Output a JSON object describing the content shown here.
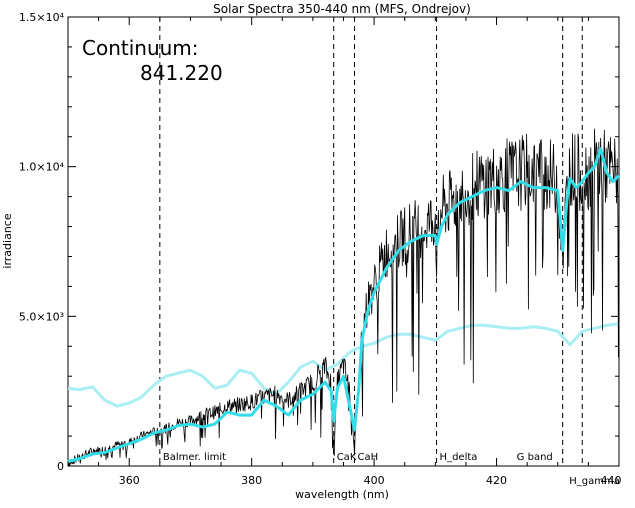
{
  "chart_data": {
    "type": "line",
    "title": "Solar Spectra 350-440 nm (MFS, Ondrejov)",
    "xlabel": "wavelength (nm)",
    "ylabel": "irradiance",
    "xlim": [
      350,
      440
    ],
    "ylim": [
      0,
      15000
    ],
    "x_ticks": [
      360,
      380,
      400,
      420,
      440
    ],
    "y_ticks": [
      {
        "value": 0,
        "label": "0"
      },
      {
        "value": 5000,
        "label": "5.0×10³"
      },
      {
        "value": 10000,
        "label": "1.0×10⁴"
      },
      {
        "value": 15000,
        "label": "1.5×10⁴"
      }
    ],
    "annotation": {
      "label": "Continuum:",
      "value": "841.220"
    },
    "spectral_lines": [
      {
        "x": 365,
        "label": "Balmer. limit"
      },
      {
        "x": 393.4,
        "label": "CaK"
      },
      {
        "x": 396.8,
        "label": "CaH"
      },
      {
        "x": 410.2,
        "label": "H_delta"
      },
      {
        "x": 430.8,
        "label": "G band"
      },
      {
        "x": 434.0,
        "label": "H_gamma"
      }
    ],
    "series": [
      {
        "color": "#000000",
        "style": "raw",
        "x": [
          350,
          352,
          354,
          356,
          358,
          360,
          362,
          364,
          366,
          368,
          370,
          372,
          374,
          376,
          378,
          380,
          382,
          384,
          386,
          388,
          390,
          391,
          392,
          393,
          393.4,
          394,
          395,
          396,
          396.8,
          397.5,
          398,
          399,
          400,
          402,
          404,
          406,
          408,
          410,
          410.2,
          411,
          412,
          414,
          416,
          418,
          420,
          422,
          424,
          426,
          428,
          430,
          430.8,
          431.5,
          432,
          433,
          434,
          435,
          436,
          437,
          438,
          439,
          440
        ],
        "y": [
          100,
          300,
          500,
          550,
          700,
          800,
          1000,
          1150,
          1250,
          1450,
          1500,
          1700,
          1800,
          2000,
          2050,
          2150,
          2300,
          2400,
          2200,
          2500,
          2800,
          3100,
          3300,
          2800,
          500,
          2800,
          3400,
          2500,
          600,
          3000,
          4500,
          5500,
          6000,
          7200,
          7500,
          7900,
          8000,
          8300,
          7000,
          8600,
          8700,
          9000,
          9300,
          9500,
          9600,
          9700,
          9800,
          9900,
          9800,
          9500,
          7000,
          9200,
          10000,
          9900,
          9700,
          9800,
          10000,
          10100,
          9900,
          9800,
          9800
        ]
      },
      {
        "color": "#33dde8",
        "style": "smoothed",
        "x": [
          350,
          352,
          354,
          356,
          358,
          360,
          362,
          364,
          366,
          368,
          370,
          372,
          374,
          376,
          378,
          380,
          382,
          384,
          386,
          388,
          390,
          391,
          392,
          393,
          393.4,
          394,
          395,
          396,
          396.8,
          397.5,
          398,
          399,
          400,
          402,
          404,
          406,
          408,
          410,
          410.2,
          411,
          412,
          414,
          416,
          418,
          420,
          422,
          424,
          426,
          428,
          430,
          430.8,
          431.5,
          432,
          433,
          434,
          435,
          436,
          437,
          438,
          439,
          440
        ],
        "y": [
          150,
          250,
          400,
          450,
          600,
          750,
          900,
          1100,
          1200,
          1350,
          1400,
          1300,
          1400,
          1800,
          1700,
          1700,
          2200,
          2000,
          1700,
          2200,
          2400,
          2600,
          2800,
          2500,
          1500,
          2600,
          3000,
          2000,
          1200,
          2600,
          4200,
          5200,
          5800,
          6600,
          7200,
          7500,
          7700,
          7700,
          7400,
          8000,
          8400,
          8800,
          9000,
          9200,
          9300,
          9200,
          9500,
          9300,
          9300,
          9200,
          7200,
          8900,
          9600,
          9300,
          9500,
          9800,
          10000,
          10600,
          9800,
          9500,
          9700
        ]
      },
      {
        "color": "#a8eef2",
        "style": "continuum",
        "x": [
          350,
          352,
          354,
          356,
          358,
          360,
          362,
          364,
          366,
          368,
          370,
          372,
          374,
          376,
          378,
          380,
          382,
          384,
          386,
          388,
          390,
          392,
          394,
          396,
          398,
          400,
          402,
          404,
          406,
          408,
          410,
          412,
          414,
          416,
          418,
          420,
          422,
          424,
          426,
          428,
          430,
          432,
          434,
          436,
          438,
          440
        ],
        "y": [
          2600,
          2550,
          2650,
          2200,
          2000,
          2100,
          2300,
          2700,
          3000,
          3100,
          3200,
          3000,
          2600,
          2700,
          3200,
          3100,
          2600,
          2400,
          2800,
          3300,
          3500,
          3200,
          3400,
          3800,
          4000,
          4100,
          4300,
          4400,
          4400,
          4300,
          4200,
          4500,
          4600,
          4700,
          4700,
          4650,
          4600,
          4600,
          4650,
          4600,
          4500,
          4050,
          4500,
          4600,
          4700,
          4750
        ]
      }
    ]
  }
}
